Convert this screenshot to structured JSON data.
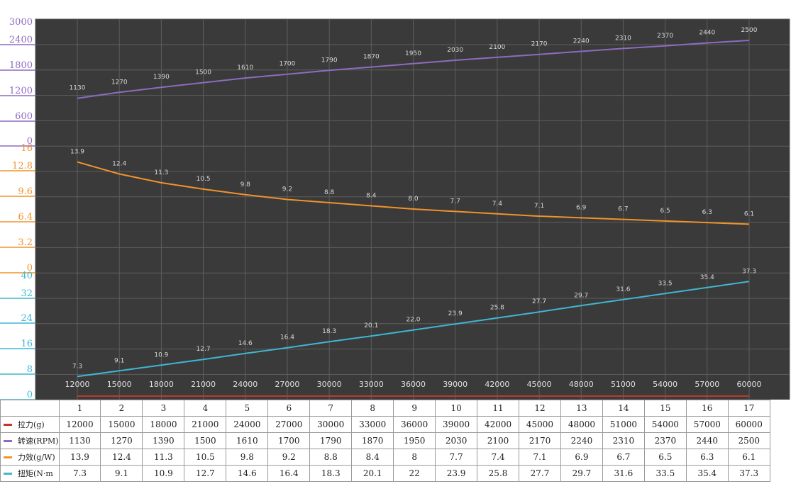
{
  "chart_data": {
    "type": "line",
    "x": [
      1,
      2,
      3,
      4,
      5,
      6,
      7,
      8,
      9,
      10,
      11,
      12,
      13,
      14,
      15,
      16,
      17
    ],
    "series": [
      {
        "name": "拉力(g)",
        "color": "#c0392b",
        "values": [
          12000,
          15000,
          18000,
          21000,
          24000,
          27000,
          30000,
          33000,
          36000,
          39000,
          42000,
          45000,
          48000,
          51000,
          54000,
          57000,
          60000
        ]
      },
      {
        "name": "转速(RPM)",
        "color": "#8e6bbf",
        "values": [
          1130,
          1270,
          1390,
          1500,
          1610,
          1700,
          1790,
          1870,
          1950,
          2030,
          2100,
          2170,
          2240,
          2310,
          2370,
          2440,
          2500
        ],
        "axis_ticks": [
          "0",
          "600",
          "1200",
          "1800",
          "2400",
          "3000"
        ],
        "ylim": [
          0,
          3000
        ]
      },
      {
        "name": "力效(g/W)",
        "color": "#f0932b",
        "values": [
          13.9,
          12.4,
          11.3,
          10.5,
          9.8,
          9.2,
          8.8,
          8.4,
          8,
          7.7,
          7.4,
          7.1,
          6.9,
          6.7,
          6.5,
          6.3,
          6.1
        ],
        "point_labels": [
          "13.9",
          "12.4",
          "11.3",
          "10.5",
          "9.8",
          "9.2",
          "8.8",
          "8.4",
          "8.0",
          "7.7",
          "7.4",
          "7.1",
          "6.9",
          "6.7",
          "6.5",
          "6.3",
          "6.1"
        ],
        "table_values": [
          "13.9",
          "12.4",
          "11.3",
          "10.5",
          "9.8",
          "9.2",
          "8.8",
          "8.4",
          "8",
          "7.7",
          "7.4",
          "7.1",
          "6.9",
          "6.7",
          "6.5",
          "6.3",
          "6.1"
        ],
        "axis_ticks": [
          "0",
          "3.2",
          "6.4",
          "9.6",
          "12.8",
          "16"
        ],
        "ylim": [
          0,
          16
        ]
      },
      {
        "name": "扭矩(N·m",
        "color": "#3fb6d3",
        "values": [
          7.3,
          9.1,
          10.9,
          12.7,
          14.6,
          16.4,
          18.3,
          20.1,
          22,
          23.9,
          25.8,
          27.7,
          29.7,
          31.6,
          33.5,
          35.4,
          37.3
        ],
        "point_labels": [
          "7.3",
          "9.1",
          "10.9",
          "12.7",
          "14.6",
          "16.4",
          "18.3",
          "20.1",
          "22.0",
          "23.9",
          "25.8",
          "27.7",
          "29.7",
          "31.6",
          "33.5",
          "35.4",
          "37.3"
        ],
        "table_values": [
          "7.3",
          "9.1",
          "10.9",
          "12.7",
          "14.6",
          "16.4",
          "18.3",
          "20.1",
          "22",
          "23.9",
          "25.8",
          "27.7",
          "29.7",
          "31.6",
          "33.5",
          "35.4",
          "37.3"
        ],
        "axis_ticks": [
          "0",
          "8",
          "16",
          "24",
          "32",
          "40"
        ],
        "ylim": [
          0,
          40
        ]
      }
    ],
    "x_tick_labels": [
      "12000",
      "15000",
      "18000",
      "21000",
      "24000",
      "27000",
      "30000",
      "33000",
      "36000",
      "39000",
      "42000",
      "45000",
      "48000",
      "51000",
      "54000",
      "57000",
      "60000"
    ],
    "grid": true,
    "background_color": "#3a3a3a"
  }
}
